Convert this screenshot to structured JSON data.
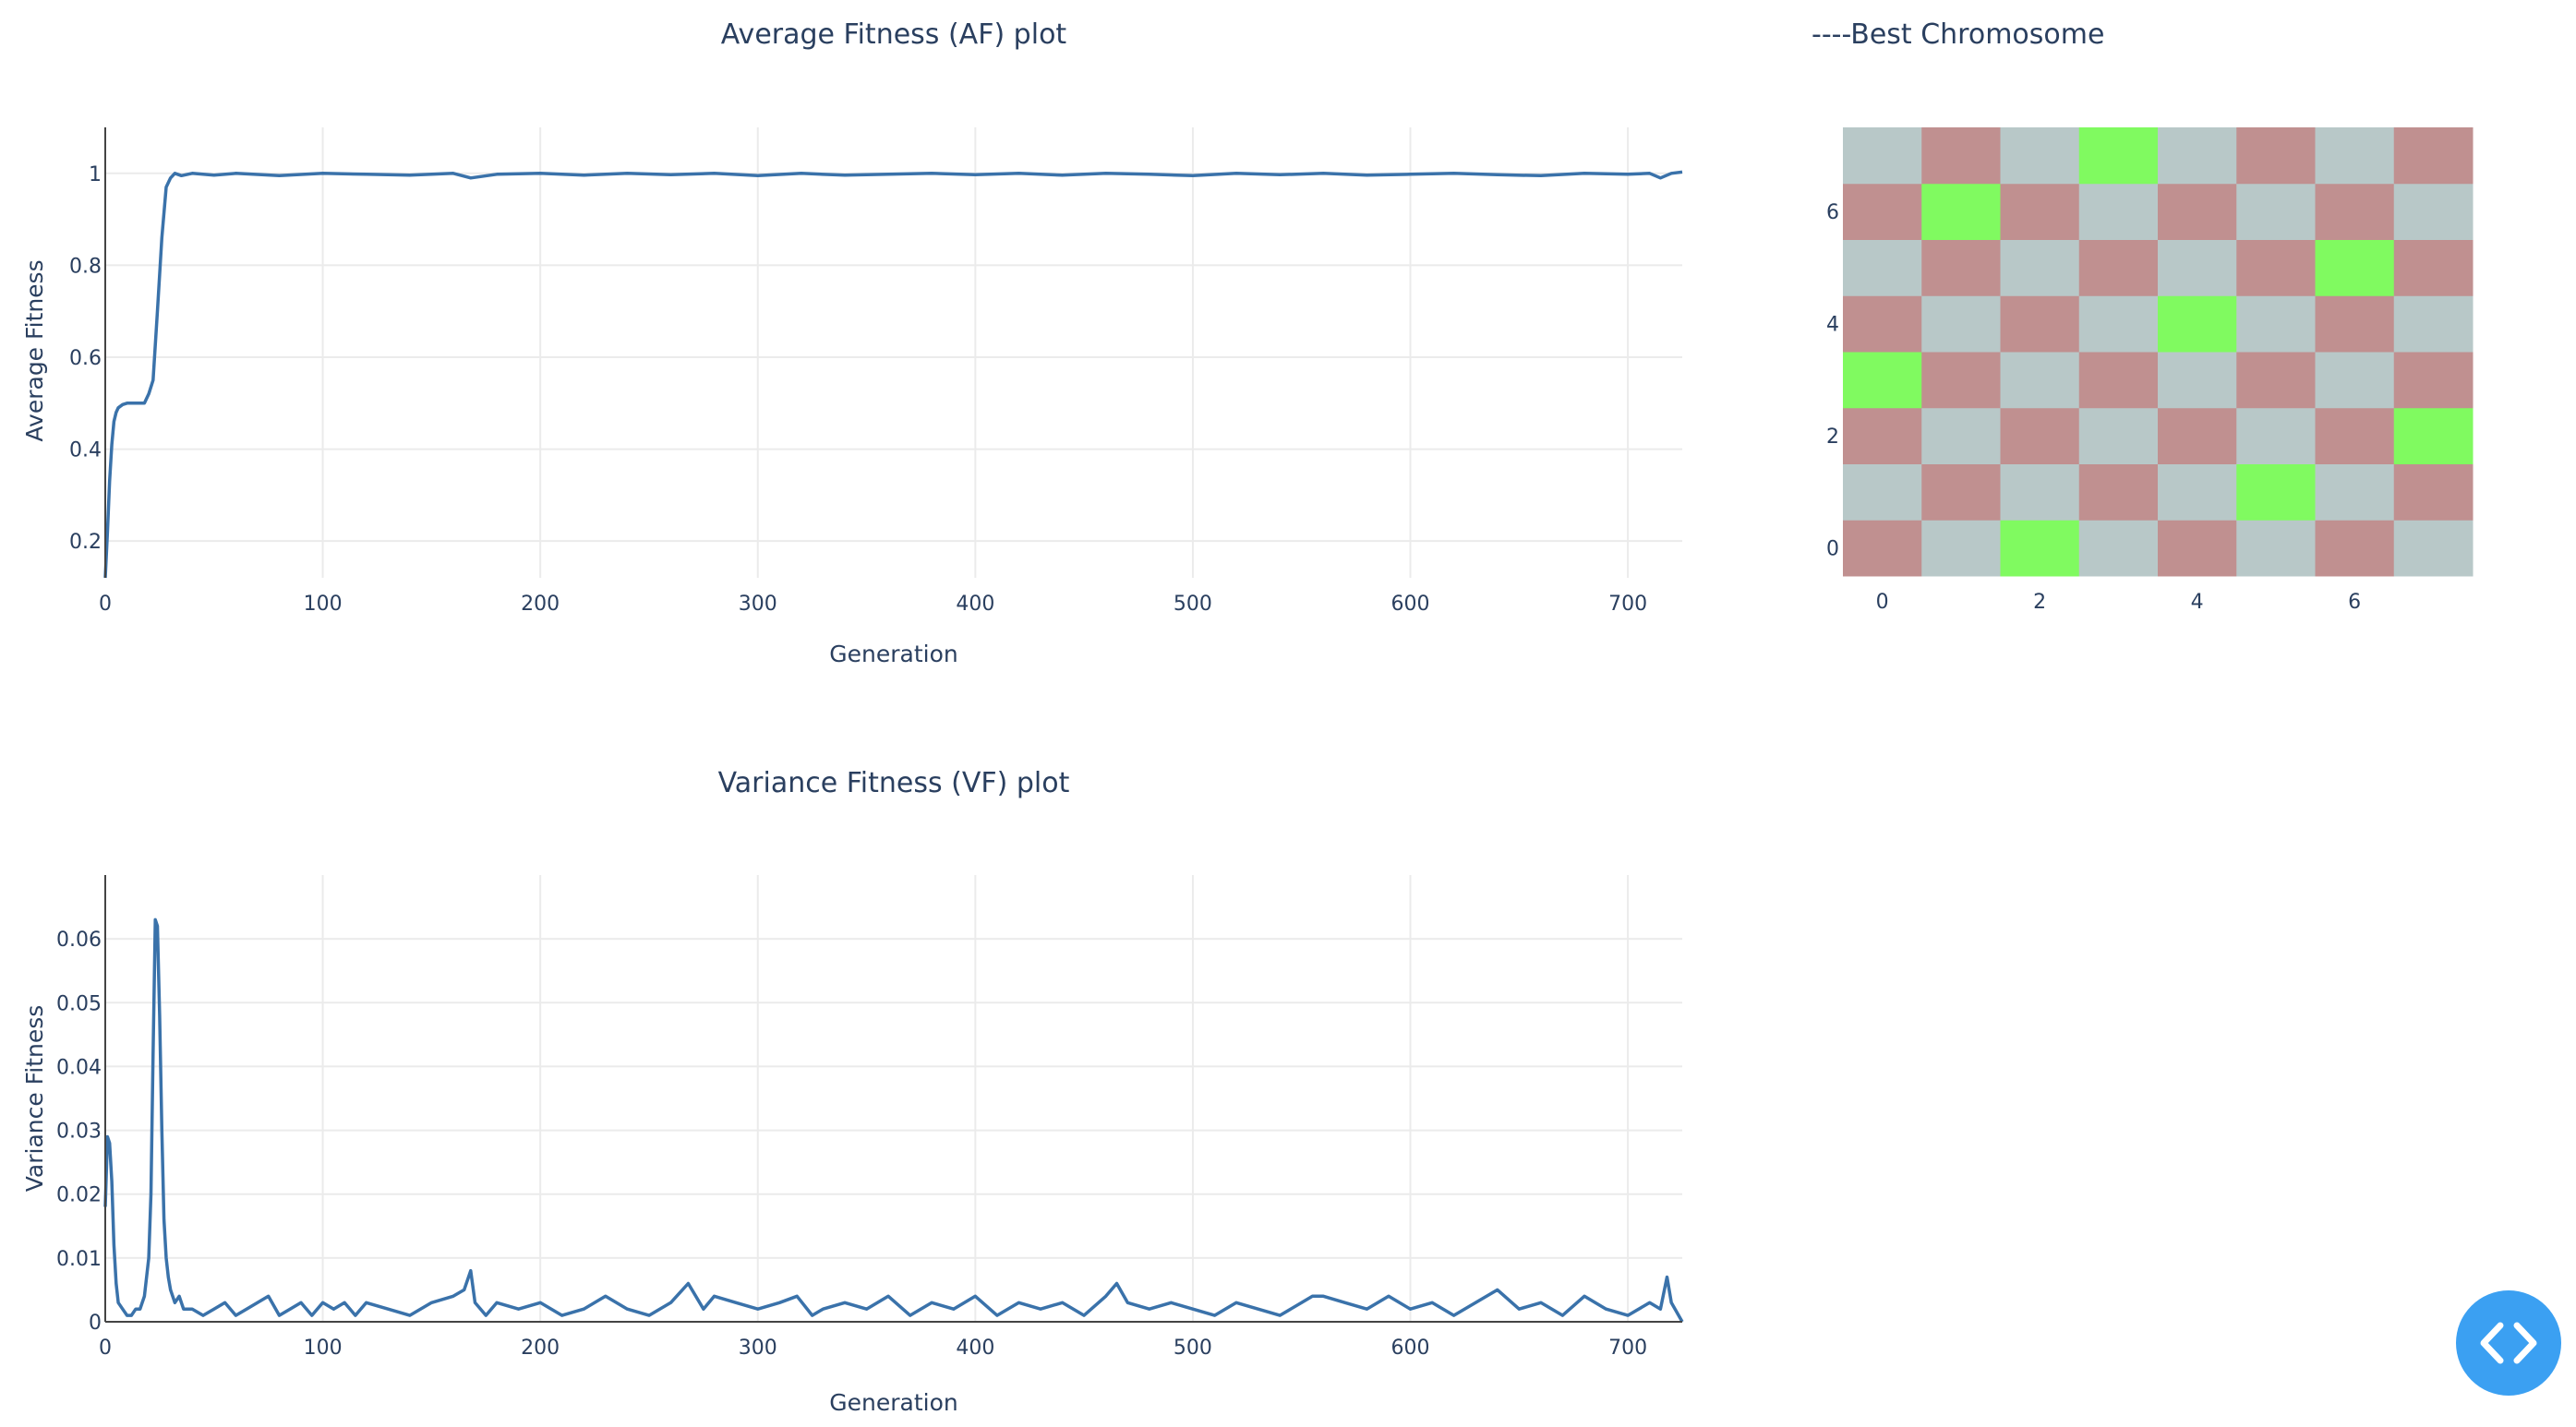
{
  "chart_data": [
    {
      "type": "line",
      "title": "Average Fitness (AF) plot",
      "xlabel": "Generation",
      "ylabel": "Average Fitness",
      "xlim": [
        0,
        725
      ],
      "ylim": [
        0.12,
        1.1
      ],
      "xticks": [
        "0",
        "100",
        "200",
        "300",
        "400",
        "500",
        "600",
        "700"
      ],
      "yticks": [
        "0.2",
        "0.4",
        "0.6",
        "0.8",
        "1"
      ],
      "grid": true,
      "series": [
        {
          "color": "#3a72aa",
          "x": [
            0,
            1,
            2,
            3,
            4,
            5,
            6,
            8,
            10,
            12,
            14,
            16,
            18,
            20,
            22,
            24,
            26,
            28,
            30,
            32,
            35,
            40,
            50,
            60,
            80,
            100,
            120,
            140,
            160,
            168,
            180,
            200,
            220,
            240,
            260,
            280,
            300,
            320,
            340,
            360,
            380,
            400,
            420,
            440,
            460,
            480,
            500,
            520,
            540,
            560,
            580,
            600,
            620,
            640,
            660,
            680,
            700,
            710,
            715,
            720,
            725
          ],
          "y": [
            0.12,
            0.22,
            0.33,
            0.41,
            0.46,
            0.48,
            0.49,
            0.497,
            0.5,
            0.5,
            0.5,
            0.5,
            0.5,
            0.52,
            0.55,
            0.7,
            0.86,
            0.97,
            0.99,
            1.0,
            0.995,
            1.0,
            0.996,
            1.0,
            0.995,
            1.0,
            0.998,
            0.996,
            1.0,
            0.99,
            0.998,
            1.0,
            0.996,
            1.0,
            0.997,
            1.0,
            0.995,
            1.0,
            0.996,
            0.998,
            1.0,
            0.997,
            1.0,
            0.996,
            1.0,
            0.998,
            0.995,
            1.0,
            0.997,
            1.0,
            0.996,
            0.998,
            1.0,
            0.997,
            0.995,
            1.0,
            0.998,
            1.0,
            0.99,
            1.0,
            1.003
          ]
        }
      ]
    },
    {
      "type": "line",
      "title": "Variance Fitness (VF) plot",
      "xlabel": "Generation",
      "ylabel": "Variance Fitness",
      "xlim": [
        0,
        725
      ],
      "ylim": [
        0,
        0.07
      ],
      "xticks": [
        "0",
        "100",
        "200",
        "300",
        "400",
        "500",
        "600",
        "700"
      ],
      "yticks": [
        "0",
        "0.01",
        "0.02",
        "0.03",
        "0.04",
        "0.05",
        "0.06"
      ],
      "grid": true,
      "series": [
        {
          "color": "#3a72aa",
          "x": [
            0,
            1,
            2,
            3,
            4,
            5,
            6,
            8,
            10,
            12,
            14,
            16,
            18,
            20,
            21,
            22,
            23,
            24,
            25,
            26,
            27,
            28,
            29,
            30,
            32,
            34,
            36,
            40,
            45,
            50,
            55,
            60,
            65,
            70,
            75,
            80,
            85,
            90,
            95,
            100,
            105,
            110,
            115,
            120,
            130,
            140,
            150,
            160,
            165,
            168,
            170,
            175,
            180,
            190,
            200,
            210,
            220,
            230,
            240,
            250,
            260,
            268,
            275,
            280,
            290,
            300,
            310,
            318,
            325,
            330,
            340,
            350,
            360,
            370,
            380,
            390,
            400,
            410,
            420,
            430,
            440,
            450,
            460,
            465,
            470,
            480,
            490,
            500,
            510,
            520,
            530,
            540,
            550,
            555,
            560,
            570,
            580,
            590,
            600,
            610,
            620,
            630,
            640,
            650,
            660,
            670,
            680,
            690,
            700,
            710,
            715,
            718,
            720,
            725
          ],
          "y": [
            0.018,
            0.029,
            0.028,
            0.022,
            0.012,
            0.006,
            0.003,
            0.002,
            0.001,
            0.001,
            0.002,
            0.002,
            0.004,
            0.01,
            0.02,
            0.042,
            0.063,
            0.062,
            0.048,
            0.03,
            0.016,
            0.01,
            0.007,
            0.005,
            0.003,
            0.004,
            0.002,
            0.002,
            0.001,
            0.002,
            0.003,
            0.001,
            0.002,
            0.003,
            0.004,
            0.001,
            0.002,
            0.003,
            0.001,
            0.003,
            0.002,
            0.003,
            0.001,
            0.003,
            0.002,
            0.001,
            0.003,
            0.004,
            0.005,
            0.008,
            0.003,
            0.001,
            0.003,
            0.002,
            0.003,
            0.001,
            0.002,
            0.004,
            0.002,
            0.001,
            0.003,
            0.006,
            0.002,
            0.004,
            0.003,
            0.002,
            0.003,
            0.004,
            0.001,
            0.002,
            0.003,
            0.002,
            0.004,
            0.001,
            0.003,
            0.002,
            0.004,
            0.001,
            0.003,
            0.002,
            0.003,
            0.001,
            0.004,
            0.006,
            0.003,
            0.002,
            0.003,
            0.002,
            0.001,
            0.003,
            0.002,
            0.001,
            0.003,
            0.004,
            0.004,
            0.003,
            0.002,
            0.004,
            0.002,
            0.003,
            0.001,
            0.003,
            0.005,
            0.002,
            0.003,
            0.001,
            0.004,
            0.002,
            0.001,
            0.003,
            0.002,
            0.007,
            0.003,
            0.0
          ]
        }
      ]
    },
    {
      "type": "heatmap",
      "title": "Best Chromosome",
      "title_prefix": "----",
      "grid_size": 8,
      "xticks": [
        "0",
        "2",
        "4",
        "6"
      ],
      "yticks": [
        "0",
        "2",
        "4",
        "6"
      ],
      "colors": {
        "light": "#b8c8c8",
        "dark": "#c09090",
        "queen": "#80fa60"
      },
      "queens": [
        [
          0,
          2
        ],
        [
          1,
          5
        ],
        [
          2,
          7
        ],
        [
          3,
          0
        ],
        [
          4,
          4
        ],
        [
          5,
          6
        ],
        [
          6,
          1
        ],
        [
          7,
          3
        ]
      ]
    }
  ],
  "ui": {
    "embed_toggle_icon": "code-brackets-icon",
    "embed_toggle_color": "#3ba0f2"
  }
}
